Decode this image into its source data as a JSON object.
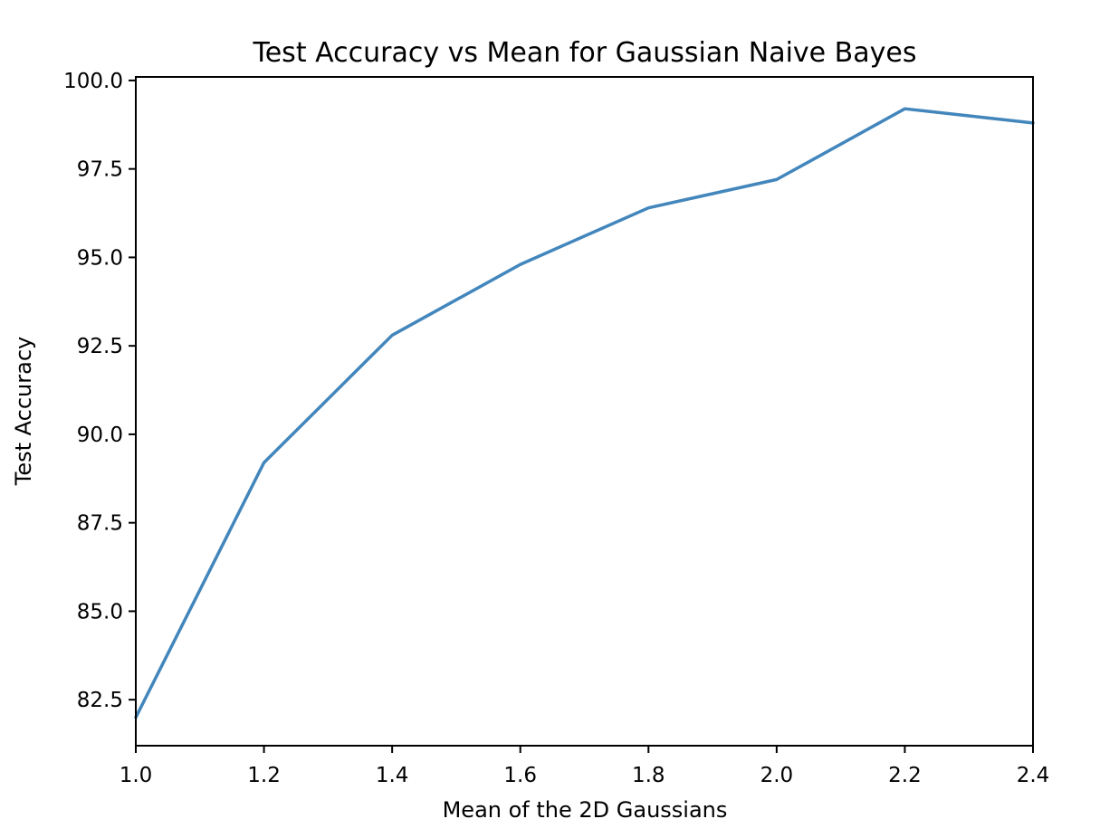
{
  "chart_data": {
    "type": "line",
    "title": "Test Accuracy vs Mean for Gaussian Naive Bayes",
    "xlabel": "Mean of the 2D Gaussians",
    "ylabel": "Test Accuracy",
    "xlim": [
      1.0,
      2.4
    ],
    "ylim": [
      81.2,
      100.1
    ],
    "x_ticks": [
      "1.0",
      "1.2",
      "1.4",
      "1.6",
      "1.8",
      "2.0",
      "2.2",
      "2.4"
    ],
    "y_ticks": [
      "82.5",
      "85.0",
      "87.5",
      "90.0",
      "92.5",
      "95.0",
      "97.5",
      "100.0"
    ],
    "grid": false,
    "series": [
      {
        "x": [
          1.0,
          1.2,
          1.4,
          1.6,
          1.8,
          2.0,
          2.2,
          2.4
        ],
        "values": [
          82.0,
          89.2,
          92.8,
          94.8,
          96.4,
          97.2,
          99.2,
          98.8
        ],
        "color": "#4286bc"
      }
    ]
  }
}
